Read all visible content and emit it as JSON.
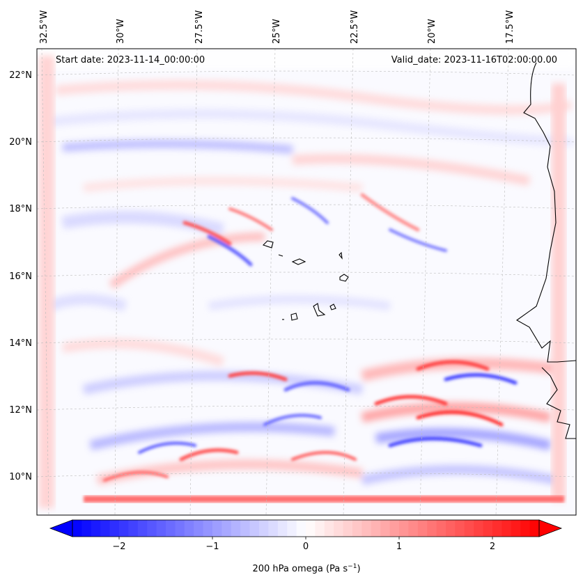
{
  "map": {
    "start_date": "Start date: 2023-11-14_00:00:00",
    "valid_date": "Valid_date: 2023-11-16T02:00:00.00",
    "lon_labels": [
      "32.5°W",
      "30°W",
      "27.5°W",
      "25°W",
      "22.5°W",
      "20°W",
      "17.5°W"
    ],
    "lat_labels": [
      "22°N",
      "20°N",
      "18°N",
      "16°N",
      "14°N",
      "12°N",
      "10°N"
    ]
  },
  "colorbar": {
    "ticks": [
      {
        "value": -2,
        "label": "−2"
      },
      {
        "value": -1,
        "label": "−1"
      },
      {
        "value": 0,
        "label": "0"
      },
      {
        "value": 1,
        "label": "1"
      },
      {
        "value": 2,
        "label": "2"
      }
    ],
    "min": -2.5,
    "max": 2.5,
    "label_main": "200 hPa omega (Pa s",
    "label_sup": "−1",
    "label_end": ")",
    "color_low": "#0000ff",
    "color_mid": "#ffffff",
    "color_high": "#ff0000"
  }
}
